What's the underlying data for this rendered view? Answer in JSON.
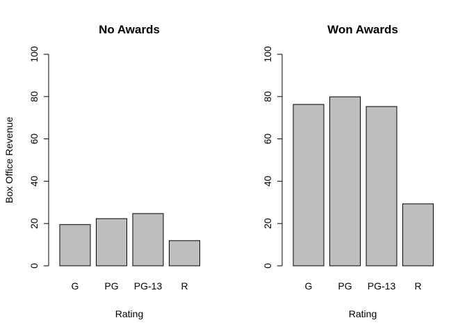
{
  "figure": {
    "shared_ylabel": "Box Office Revenue"
  },
  "chart_data": [
    {
      "type": "bar",
      "title": "No Awards",
      "xlabel": "Rating",
      "ylabel": "Box Office Revenue",
      "categories": [
        "G",
        "PG",
        "PG-13",
        "R"
      ],
      "values": [
        19.5,
        22.3,
        24.7,
        11.9
      ],
      "ylim": [
        0,
        100
      ],
      "yticks": [
        0,
        20,
        40,
        60,
        80,
        100
      ],
      "bar_color": "#bebebe",
      "grid": false,
      "legend": "none"
    },
    {
      "type": "bar",
      "title": "Won Awards",
      "xlabel": "Rating",
      "ylabel": "",
      "categories": [
        "G",
        "PG",
        "PG-13",
        "R"
      ],
      "values": [
        76.3,
        79.9,
        75.3,
        29.3
      ],
      "ylim": [
        0,
        100
      ],
      "yticks": [
        0,
        20,
        40,
        60,
        80,
        100
      ],
      "bar_color": "#bebebe",
      "grid": false,
      "legend": "none"
    }
  ]
}
